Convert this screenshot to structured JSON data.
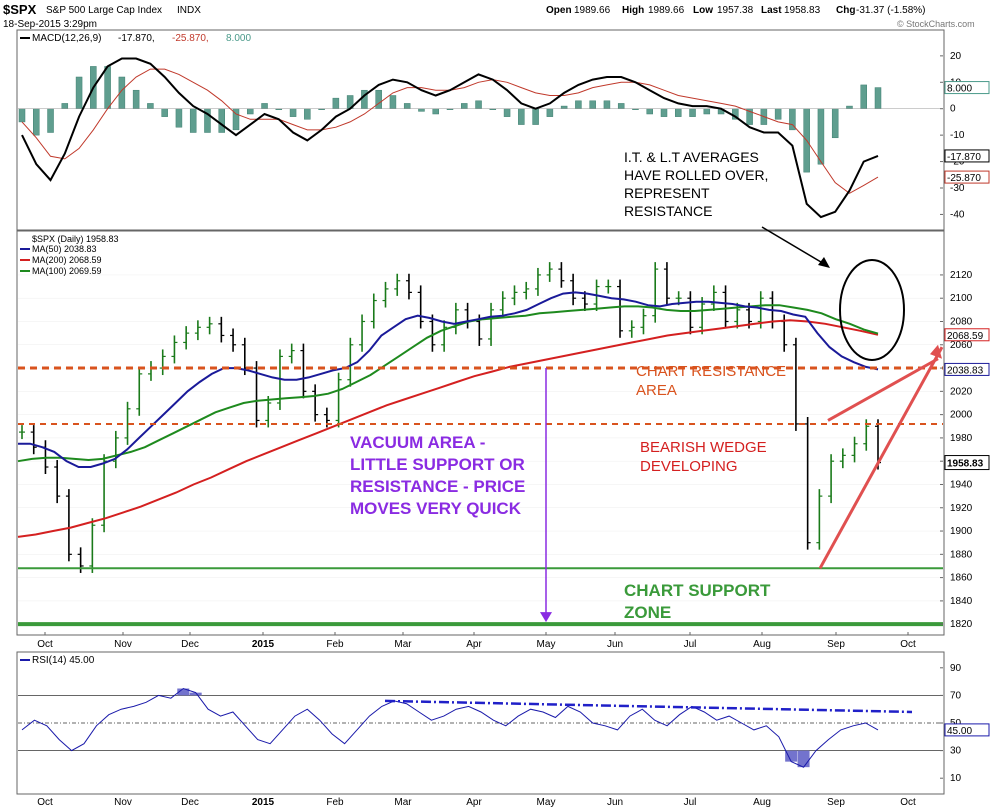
{
  "header": {
    "symbol": "$SPX",
    "name": "S&P 500 Large Cap Index",
    "exchange": "INDX",
    "datetime": "18-Sep-2015 3:29pm",
    "open_label": "Open",
    "open": "1989.66",
    "high_label": "High",
    "high": "1989.66",
    "low_label": "Low",
    "low": "1957.38",
    "last_label": "Last",
    "last": "1958.83",
    "chg_label": "Chg",
    "chg": "-31.37 (-1.58%)",
    "watermark": "© StockCharts.com"
  },
  "colors": {
    "up": "#1a7a1a",
    "down": "#000000",
    "ma50": "#1a1a99",
    "ma200": "#d42020",
    "ma100": "#1e8a1e",
    "resistance": "#d9531e",
    "support": "#3a9a3a",
    "vacuum": "#8a2be2",
    "rsi": "#1a1aaa",
    "macd_hist": "#5f9e8f",
    "macd_signal": "#c0392b"
  },
  "chart_data": [
    {
      "type": "line",
      "panel": "MACD",
      "legend": "MACD(12,26,9) -17.870, -25.870, 8.000",
      "legend_parts": [
        "MACD(12,26,9)",
        "-17.870,",
        "-25.870,",
        "8.000"
      ],
      "ylim": [
        -44,
        26
      ],
      "y_ticks": [
        20,
        10,
        0,
        -10,
        -20,
        -30,
        -40
      ],
      "tags": [
        "8.000",
        "-17.870",
        "-25.870"
      ],
      "macd": [
        -10,
        -21,
        -27,
        -17,
        -3,
        8,
        16,
        19,
        19,
        17,
        12,
        6,
        1,
        -2,
        -6,
        -10,
        -6,
        -2,
        -4,
        -9,
        -12,
        -8,
        -3,
        0,
        5,
        9,
        11,
        10,
        7,
        5,
        7,
        10,
        13,
        11,
        7,
        2,
        0,
        2,
        6,
        9,
        11,
        12,
        12,
        10,
        7,
        4,
        2,
        1,
        1,
        0,
        -3,
        -7,
        -9,
        -9,
        -14,
        -36,
        -41,
        -39,
        -31,
        -20,
        -17.87
      ],
      "signal": [
        -5,
        -11,
        -18,
        -19,
        -15,
        -8,
        0,
        7,
        12,
        15,
        15,
        13,
        10,
        7,
        3,
        -2,
        -4,
        -4,
        -4,
        -6,
        -8,
        -8,
        -7,
        -5,
        -2,
        2,
        6,
        8,
        8,
        7,
        7,
        8,
        10,
        11,
        10,
        8,
        6,
        5,
        5,
        6,
        8,
        9,
        10,
        10,
        9,
        7,
        5,
        4,
        3,
        2,
        1,
        -1,
        -3,
        -5,
        -6,
        -12,
        -20,
        -28,
        -32,
        -29,
        -25.87
      ],
      "histogram": [
        -5,
        -10,
        -9,
        2,
        12,
        16,
        16,
        12,
        7,
        2,
        -3,
        -7,
        -9,
        -9,
        -9,
        -8,
        -2,
        2,
        0,
        -3,
        -4,
        0,
        4,
        5,
        7,
        7,
        5,
        2,
        -1,
        -2,
        0,
        2,
        3,
        0,
        -3,
        -6,
        -6,
        -3,
        1,
        3,
        3,
        3,
        2,
        0,
        -2,
        -3,
        -3,
        -3,
        -2,
        -2,
        -4,
        -6,
        -6,
        -4,
        -8,
        -24,
        -21,
        -11,
        1,
        9,
        8
      ]
    },
    {
      "type": "line",
      "panel": "Price",
      "legend": "$SPX (Daily) 1958.83",
      "ma_legend": [
        "MA(50) 2038.83",
        "MA(200) 2068.59",
        "MA(100) 2069.59"
      ],
      "ylim": [
        1815,
        2150
      ],
      "y_ticks": [
        2120,
        2100,
        2080,
        2060,
        2040,
        2020,
        2000,
        1980,
        1960,
        1940,
        1920,
        1900,
        1880,
        1860,
        1840,
        1820
      ],
      "x_labels": [
        "Oct",
        "Nov",
        "Dec",
        "2015",
        "Feb",
        "Mar",
        "Apr",
        "May",
        "Jun",
        "Jul",
        "Aug",
        "Sep",
        "Oct"
      ],
      "tags": [
        "2068.59",
        "2038.83",
        "1958.83"
      ],
      "close": [
        1985,
        1972,
        1955,
        1930,
        1880,
        1870,
        1905,
        1960,
        1980,
        2005,
        2035,
        2040,
        2050,
        2062,
        2070,
        2075,
        2078,
        2068,
        2060,
        2040,
        1995,
        2010,
        2050,
        2055,
        2020,
        2000,
        1995,
        2030,
        2060,
        2080,
        2098,
        2108,
        2115,
        2105,
        2080,
        2060,
        2075,
        2090,
        2080,
        2065,
        2090,
        2100,
        2105,
        2108,
        2120,
        2125,
        2115,
        2100,
        2095,
        2110,
        2110,
        2072,
        2075,
        2085,
        2125,
        2100,
        2100,
        2075,
        2095,
        2105,
        2080,
        2090,
        2080,
        2100,
        2080,
        2060,
        1992,
        1890,
        1930,
        1960,
        1965,
        1975,
        1990,
        1958.83
      ],
      "ma50": [
        1975,
        1975,
        1972,
        1968,
        1960,
        1955,
        1955,
        1958,
        1962,
        1970,
        1980,
        1990,
        2000,
        2010,
        2020,
        2028,
        2035,
        2040,
        2040,
        2038,
        2035,
        2032,
        2030,
        2030,
        2032,
        2035,
        2038,
        2040,
        2045,
        2055,
        2068,
        2075,
        2082,
        2085,
        2083,
        2080,
        2078,
        2080,
        2082,
        2084,
        2085,
        2087,
        2090,
        2095,
        2100,
        2104,
        2105,
        2104,
        2102,
        2100,
        2099,
        2097,
        2094,
        2093,
        2095,
        2096,
        2097,
        2097,
        2096,
        2095,
        2093,
        2092,
        2090,
        2089,
        2086,
        2084,
        2070,
        2058,
        2050,
        2045,
        2041,
        2038.83
      ],
      "ma100": [
        1960,
        1962,
        1963,
        1963,
        1962,
        1961,
        1962,
        1965,
        1968,
        1972,
        1978,
        1984,
        1990,
        1996,
        2002,
        2006,
        2010,
        2012,
        2013,
        2014,
        2015,
        2016,
        2018,
        2022,
        2028,
        2034,
        2042,
        2050,
        2058,
        2066,
        2072,
        2076,
        2080,
        2082,
        2083,
        2084,
        2085,
        2087,
        2088,
        2089,
        2090,
        2091,
        2092,
        2093,
        2093,
        2092,
        2090,
        2089,
        2089,
        2090,
        2091,
        2092,
        2093,
        2094,
        2094,
        2092,
        2090,
        2087,
        2082,
        2078,
        2073,
        2069.59
      ],
      "ma200": [
        1895,
        1897,
        1900,
        1903,
        1907,
        1911,
        1916,
        1921,
        1927,
        1933,
        1940,
        1946,
        1953,
        1960,
        1966,
        1972,
        1978,
        1984,
        1990,
        1996,
        2002,
        2008,
        2013,
        2018,
        2023,
        2028,
        2033,
        2037,
        2041,
        2044,
        2047,
        2050,
        2053,
        2056,
        2059,
        2062,
        2065,
        2068,
        2070,
        2072,
        2074,
        2076,
        2078,
        2080,
        2081,
        2080,
        2078,
        2075,
        2072,
        2068.59
      ],
      "annotations": {
        "averages_note": [
          "I.T. & L.T AVERAGES",
          "HAVE ROLLED OVER,",
          "REPRESENT",
          "RESISTANCE"
        ],
        "resistance_note": [
          "CHART RESISTANCE",
          "AREA"
        ],
        "wedge_note": [
          "BEARISH WEDGE",
          "DEVELOPING"
        ],
        "vacuum_note": [
          "VACUUM AREA -",
          "LITTLE SUPPORT OR",
          "RESISTANCE - PRICE",
          "MOVES VERY QUICK"
        ],
        "support_note": [
          "CHART SUPPORT",
          "ZONE"
        ],
        "resistance_levels": [
          2040,
          1992
        ],
        "support_levels": [
          1868,
          1820
        ]
      }
    },
    {
      "type": "line",
      "panel": "RSI",
      "legend": "RSI(14) 45.00",
      "ylim": [
        0,
        100
      ],
      "y_ticks": [
        90,
        70,
        50,
        30,
        10
      ],
      "tag": "45.00",
      "x_labels": [
        "Oct",
        "Nov",
        "Dec",
        "2015",
        "Feb",
        "Mar",
        "Apr",
        "May",
        "Jun",
        "Jul",
        "Aug",
        "Sep",
        "Oct"
      ],
      "values": [
        45,
        52,
        48,
        38,
        30,
        35,
        48,
        56,
        60,
        62,
        65,
        70,
        68,
        75,
        72,
        60,
        55,
        58,
        48,
        38,
        35,
        45,
        55,
        60,
        52,
        42,
        35,
        45,
        55,
        62,
        66,
        64,
        58,
        52,
        55,
        60,
        62,
        58,
        52,
        48,
        55,
        60,
        58,
        54,
        62,
        58,
        50,
        48,
        45,
        55,
        60,
        52,
        48,
        56,
        62,
        58,
        52,
        55,
        50,
        45,
        48,
        40,
        22,
        18,
        30,
        38,
        45,
        48,
        50,
        45
      ],
      "levels": [
        70,
        50,
        30
      ]
    }
  ]
}
